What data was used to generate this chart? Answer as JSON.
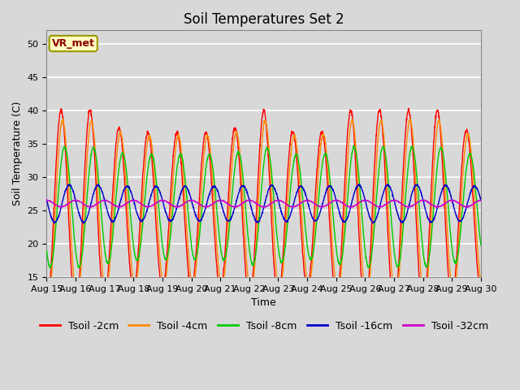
{
  "title": "Soil Temperatures Set 2",
  "xlabel": "Time",
  "ylabel": "Soil Temperature (C)",
  "ylim": [
    15,
    52
  ],
  "yticks": [
    15,
    20,
    25,
    30,
    35,
    40,
    45,
    50
  ],
  "num_days": 15,
  "annotation": "VR_met",
  "annotation_color": "#8B0000",
  "annotation_bg": "#FFFFC0",
  "lines": [
    {
      "label": "Tsoil -2cm",
      "color": "#FF0000"
    },
    {
      "label": "Tsoil -4cm",
      "color": "#FF8C00"
    },
    {
      "label": "Tsoil -8cm",
      "color": "#00CC00"
    },
    {
      "label": "Tsoil -16cm",
      "color": "#0000CC"
    },
    {
      "label": "Tsoil -32cm",
      "color": "#CC00CC"
    }
  ],
  "base_temps": [
    25.0,
    25.0,
    25.5,
    26.0,
    26.0
  ],
  "amplitudes": [
    15.0,
    13.5,
    9.0,
    2.8,
    0.5
  ],
  "phase_lags": [
    0.0,
    0.05,
    0.12,
    0.28,
    0.5
  ],
  "day_variation": [
    1.0,
    1.0,
    0.82,
    0.78,
    0.78,
    0.78,
    0.82,
    1.0,
    0.78,
    0.78,
    1.0,
    1.0,
    1.0,
    1.0,
    0.8
  ],
  "bg_color": "#D8D8D8",
  "plot_bg_color": "#D8D8D8",
  "grid_color": "#FFFFFF",
  "title_fontsize": 12,
  "label_fontsize": 9,
  "tick_fontsize": 8,
  "legend_fontsize": 9,
  "pts_per_day": 144
}
